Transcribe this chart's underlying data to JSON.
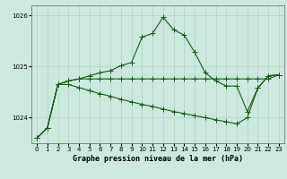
{
  "title": "Graphe pression niveau de la mer (hPa)",
  "bg_color": "#cce8df",
  "grid_color_major": "#aaccbb",
  "grid_color_minor": "#bbddcc",
  "line_color": "#1a5c1a",
  "hours": [
    0,
    1,
    2,
    3,
    4,
    5,
    6,
    7,
    8,
    9,
    10,
    11,
    12,
    13,
    14,
    15,
    16,
    17,
    18,
    19,
    20,
    21,
    22,
    23
  ],
  "s1": [
    1023.6,
    1023.8,
    1024.65,
    1024.72,
    1024.76,
    1024.82,
    1024.88,
    1024.92,
    1025.02,
    1025.08,
    1025.58,
    1025.65,
    1025.97,
    1025.72,
    1025.62,
    1025.28,
    1024.88,
    1024.72,
    1024.62,
    1024.62,
    1024.12,
    1024.58,
    1024.82,
    1024.84
  ],
  "s2": [
    1023.6,
    1023.8,
    1024.65,
    1024.72,
    1024.76,
    1024.76,
    1024.76,
    1024.76,
    1024.76,
    1024.76,
    1024.76,
    1024.76,
    1024.76,
    1024.76,
    1024.76,
    1024.76,
    1024.76,
    1024.76,
    1024.76,
    1024.76,
    1024.76,
    1024.76,
    1024.76,
    1024.84
  ],
  "s3": [
    1023.6,
    1023.8,
    1024.65,
    1024.65,
    1024.59,
    1024.53,
    1024.47,
    1024.42,
    1024.36,
    1024.31,
    1024.26,
    1024.22,
    1024.17,
    1024.12,
    1024.08,
    1024.04,
    1024.0,
    1023.96,
    1023.92,
    1023.88,
    1024.0,
    1024.58,
    1024.82,
    1024.84
  ],
  "ylim": [
    1023.5,
    1026.2
  ],
  "yticks": [
    1024,
    1025,
    1026
  ],
  "marker_size": 4,
  "linewidth": 0.8,
  "title_fontsize": 6,
  "tick_fontsize": 5
}
